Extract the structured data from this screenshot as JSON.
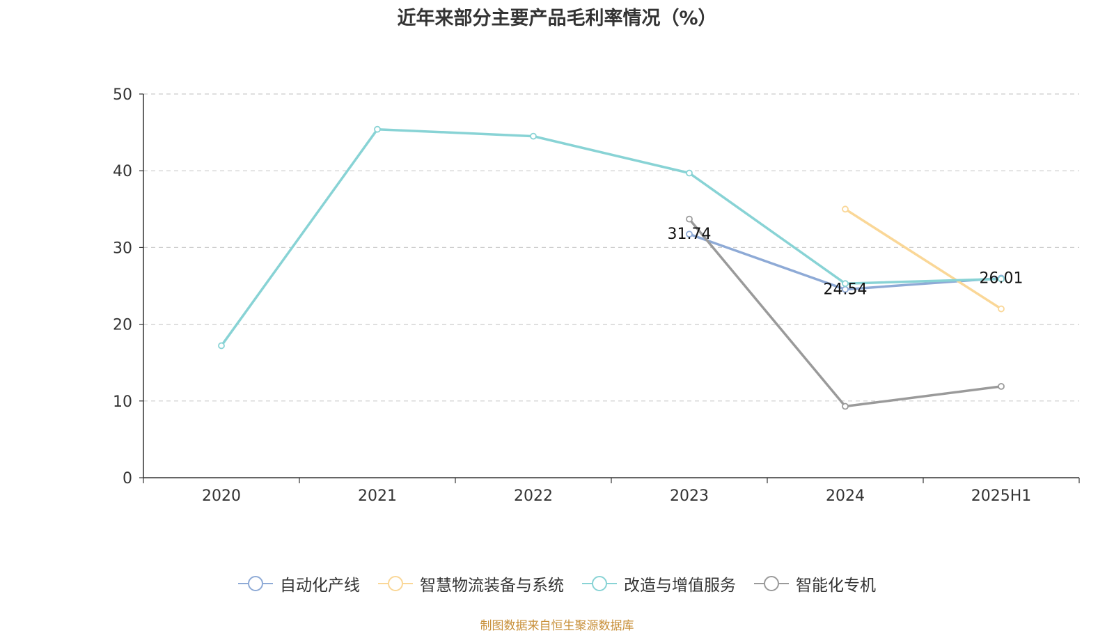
{
  "title": "近年来部分主要产品毛利率情况（%）",
  "source": "制图数据来自恒生聚源数据库",
  "chart_data": {
    "type": "line",
    "categories": [
      "2020",
      "2021",
      "2022",
      "2023",
      "2024",
      "2025H1"
    ],
    "ylim": [
      0,
      50
    ],
    "yticks": [
      0,
      10,
      20,
      30,
      40,
      50
    ],
    "grid": true,
    "legend_position": "bottom",
    "series": [
      {
        "name": "自动化产线",
        "color": "#8eaad6",
        "values": [
          null,
          null,
          null,
          31.74,
          24.54,
          26.01
        ]
      },
      {
        "name": "智慧物流装备与系统",
        "color": "#fad797",
        "values": [
          null,
          null,
          null,
          null,
          35.0,
          22.0
        ]
      },
      {
        "name": "改造与增值服务",
        "color": "#88d3d5",
        "values": [
          17.2,
          45.4,
          44.5,
          39.7,
          25.3,
          25.9
        ]
      },
      {
        "name": "智能化专机",
        "color": "#9a9a9a",
        "values": [
          null,
          null,
          null,
          33.7,
          9.3,
          11.9
        ]
      }
    ],
    "data_labels": [
      {
        "series": "自动化产线",
        "category": "2023",
        "text": "31.74"
      },
      {
        "series": "自动化产线",
        "category": "2024",
        "text": "24.54"
      },
      {
        "series": "自动化产线",
        "category": "2025H1",
        "text": "26.01"
      }
    ]
  }
}
